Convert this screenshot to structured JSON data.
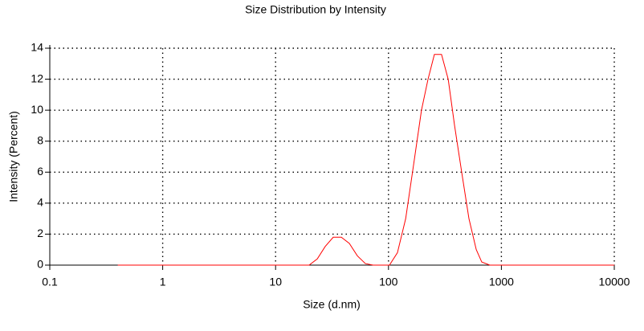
{
  "chart_data": {
    "type": "line",
    "title": "Size Distribution by Intensity",
    "xlabel": "Size (d.nm)",
    "ylabel": "Intensity (Percent)",
    "xscale": "log",
    "x": [
      0.4,
      1,
      5,
      19.8,
      23.4,
      27.5,
      32.4,
      38.2,
      45,
      53,
      62.4,
      73,
      102,
      120,
      142,
      167,
      196,
      224,
      255,
      295,
      338,
      385,
      445,
      516,
      599,
      670,
      790,
      2000,
      10000
    ],
    "series": [
      {
        "name": "Intensity",
        "color": "#ff0000",
        "values": [
          0,
          0,
          0,
          0,
          0.4,
          1.2,
          1.8,
          1.8,
          1.4,
          0.6,
          0.1,
          0,
          0,
          0.8,
          3,
          6.5,
          10,
          12,
          13.6,
          13.6,
          12,
          9,
          6,
          3,
          1,
          0.2,
          0,
          0,
          0
        ]
      }
    ],
    "xlim": [
      0.1,
      10000
    ],
    "xticks": [
      0.1,
      1,
      10,
      100,
      1000,
      10000
    ],
    "ylim": [
      0,
      14
    ],
    "yticks": [
      0,
      2,
      4,
      6,
      8,
      10,
      12,
      14
    ],
    "grid": true
  }
}
